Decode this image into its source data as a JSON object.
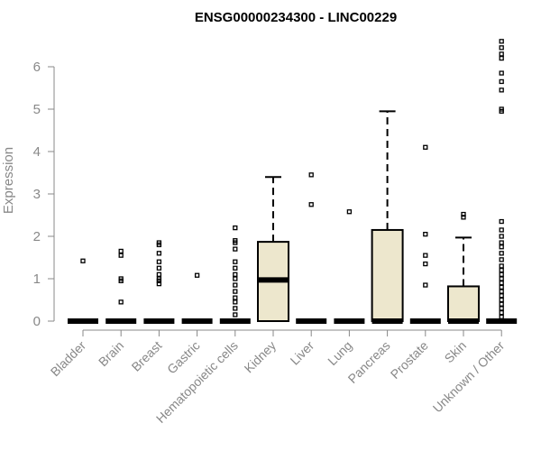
{
  "chart_data": {
    "type": "box",
    "title": "ENSG00000234300 - LINC00229",
    "ylabel": "Expression",
    "xlabel": "",
    "ylim": [
      0,
      6.6
    ],
    "yticks": [
      0,
      1,
      2,
      3,
      4,
      5,
      6
    ],
    "categories": [
      "Bladder",
      "Brain",
      "Breast",
      "Gastric",
      "Hematopoietic cells",
      "Kidney",
      "Liver",
      "Lung",
      "Pancreas",
      "Prostate",
      "Skin",
      "Unknown / Other"
    ],
    "boxes": [
      {
        "q1": 0,
        "median": 0,
        "q3": 0,
        "whisker_low": 0,
        "whisker_high": 0,
        "outliers": [
          1.42
        ]
      },
      {
        "q1": 0,
        "median": 0,
        "q3": 0,
        "whisker_low": 0,
        "whisker_high": 0,
        "outliers": [
          0.45,
          0.95,
          1.0,
          1.55,
          1.65
        ]
      },
      {
        "q1": 0,
        "median": 0,
        "q3": 0,
        "whisker_low": 0,
        "whisker_high": 0,
        "outliers": [
          0.88,
          0.95,
          1.0,
          1.1,
          1.25,
          1.4,
          1.6,
          1.8,
          1.85
        ]
      },
      {
        "q1": 0,
        "median": 0,
        "q3": 0,
        "whisker_low": 0,
        "whisker_high": 0,
        "outliers": [
          1.08
        ]
      },
      {
        "q1": 0,
        "median": 0,
        "q3": 0,
        "whisker_low": 0,
        "whisker_high": 0,
        "outliers": [
          0.15,
          0.3,
          0.45,
          0.55,
          0.7,
          0.85,
          1.0,
          1.1,
          1.25,
          1.4,
          1.7,
          1.85,
          1.9,
          2.2
        ]
      },
      {
        "q1": 0,
        "median": 0.97,
        "q3": 1.87,
        "whisker_low": 0,
        "whisker_high": 3.4,
        "outliers": []
      },
      {
        "q1": 0,
        "median": 0,
        "q3": 0,
        "whisker_low": 0,
        "whisker_high": 0,
        "outliers": [
          2.75,
          3.45
        ]
      },
      {
        "q1": 0,
        "median": 0,
        "q3": 0,
        "whisker_low": 0,
        "whisker_high": 0,
        "outliers": [
          2.58
        ]
      },
      {
        "q1": 0,
        "median": 0,
        "q3": 2.15,
        "whisker_low": 0,
        "whisker_high": 4.95,
        "outliers": []
      },
      {
        "q1": 0,
        "median": 0,
        "q3": 0,
        "whisker_low": 0,
        "whisker_high": 0,
        "outliers": [
          0.85,
          1.35,
          1.55,
          2.05,
          4.1
        ]
      },
      {
        "q1": 0,
        "median": 0,
        "q3": 0.82,
        "whisker_low": 0,
        "whisker_high": 1.97,
        "outliers": [
          2.45,
          2.52
        ]
      },
      {
        "q1": 0,
        "median": 0,
        "q3": 0,
        "whisker_low": 0,
        "whisker_high": 0,
        "outliers": [
          0.1,
          0.2,
          0.3,
          0.4,
          0.5,
          0.6,
          0.7,
          0.8,
          0.9,
          1.0,
          1.1,
          1.2,
          1.3,
          1.45,
          1.6,
          1.75,
          1.85,
          2.0,
          2.15,
          2.35,
          4.95,
          5.0,
          5.45,
          5.65,
          5.85,
          6.2,
          6.3,
          6.45,
          6.6
        ]
      }
    ],
    "box_fill": "#ede7cd",
    "axis_color": "#888888",
    "grid": false,
    "legend": "none"
  }
}
